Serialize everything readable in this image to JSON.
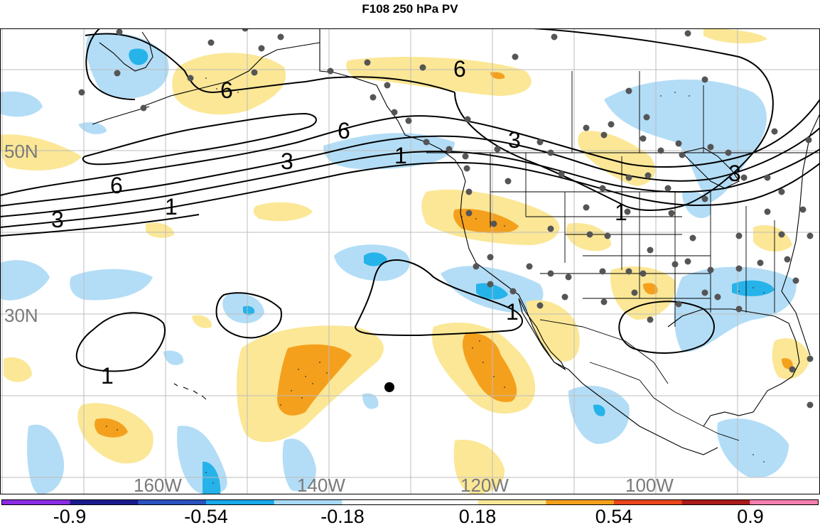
{
  "title": "F108 250 hPa PV",
  "map": {
    "lat_labels": [
      "50N",
      "30N"
    ],
    "lon_labels": [
      "160W",
      "140W",
      "120W",
      "100W"
    ],
    "contour_labels": [
      "6",
      "6",
      "6",
      "3",
      "3",
      "3",
      "1",
      "1",
      "1",
      "1",
      "1",
      "6",
      "3"
    ],
    "colors": {
      "positive_light": "#fbe796",
      "positive_mid": "#f4a01d",
      "negative_light": "#b3ddf6",
      "negative_mid": "#26b3ea",
      "contour": "#000000",
      "grid": "#bcbcbc",
      "station_dot": "#555555"
    }
  },
  "colorbar": {
    "tick_labels": [
      "-0.9",
      "-0.54",
      "-0.18",
      "0.18",
      "0.54",
      "0.9"
    ],
    "segment_colors": [
      "#8a2be2",
      "#1a1a8c",
      "#2a52be",
      "#16a9e8",
      "#a9d9f5",
      "#ffffff",
      "#ffffff",
      "#fbe796",
      "#f4a01d",
      "#e8461a",
      "#a81a1a",
      "#f47fb0"
    ]
  }
}
